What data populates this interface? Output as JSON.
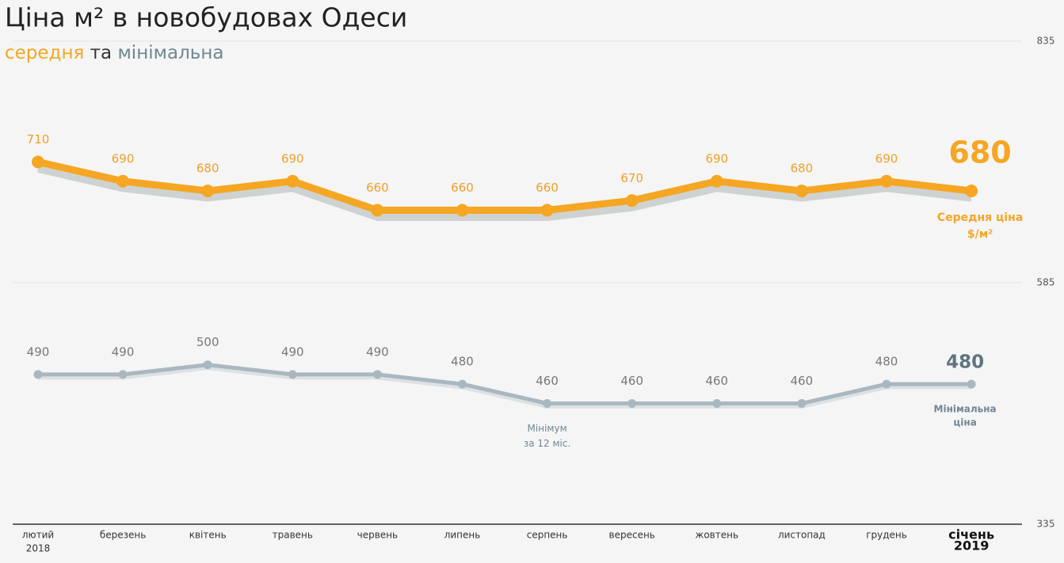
{
  "chart_data": {
    "type": "line",
    "title": "Ціна м² в новобудовах Одеси",
    "subtitle_joiner": "та",
    "categories": [
      "лютий",
      "березень",
      "квітень",
      "травень",
      "червень",
      "липень",
      "серпень",
      "вересень",
      "жовтень",
      "листопад",
      "грудень",
      "січень"
    ],
    "category_years": [
      "2018",
      null,
      null,
      null,
      null,
      null,
      null,
      null,
      null,
      null,
      null,
      "2019"
    ],
    "series": [
      {
        "name": "середня",
        "color": "#f5a623",
        "values": [
          710,
          690,
          680,
          690,
          660,
          660,
          660,
          670,
          690,
          680,
          690,
          680
        ],
        "end_label": [
          "Середня ціна",
          "$/м²"
        ]
      },
      {
        "name": "мінімальна",
        "color": "#a9b7c0",
        "values": [
          490,
          490,
          500,
          490,
          490,
          480,
          460,
          460,
          460,
          460,
          480,
          480
        ],
        "end_label": [
          "Мінімальна",
          "ціна"
        ]
      }
    ],
    "annotations": [
      {
        "category": "серпень",
        "series": 1,
        "text": [
          "Мінімум",
          "за 12 міс."
        ]
      }
    ],
    "ylim": [
      335,
      835
    ],
    "yticks": [
      335,
      585,
      835
    ],
    "grid": true
  }
}
